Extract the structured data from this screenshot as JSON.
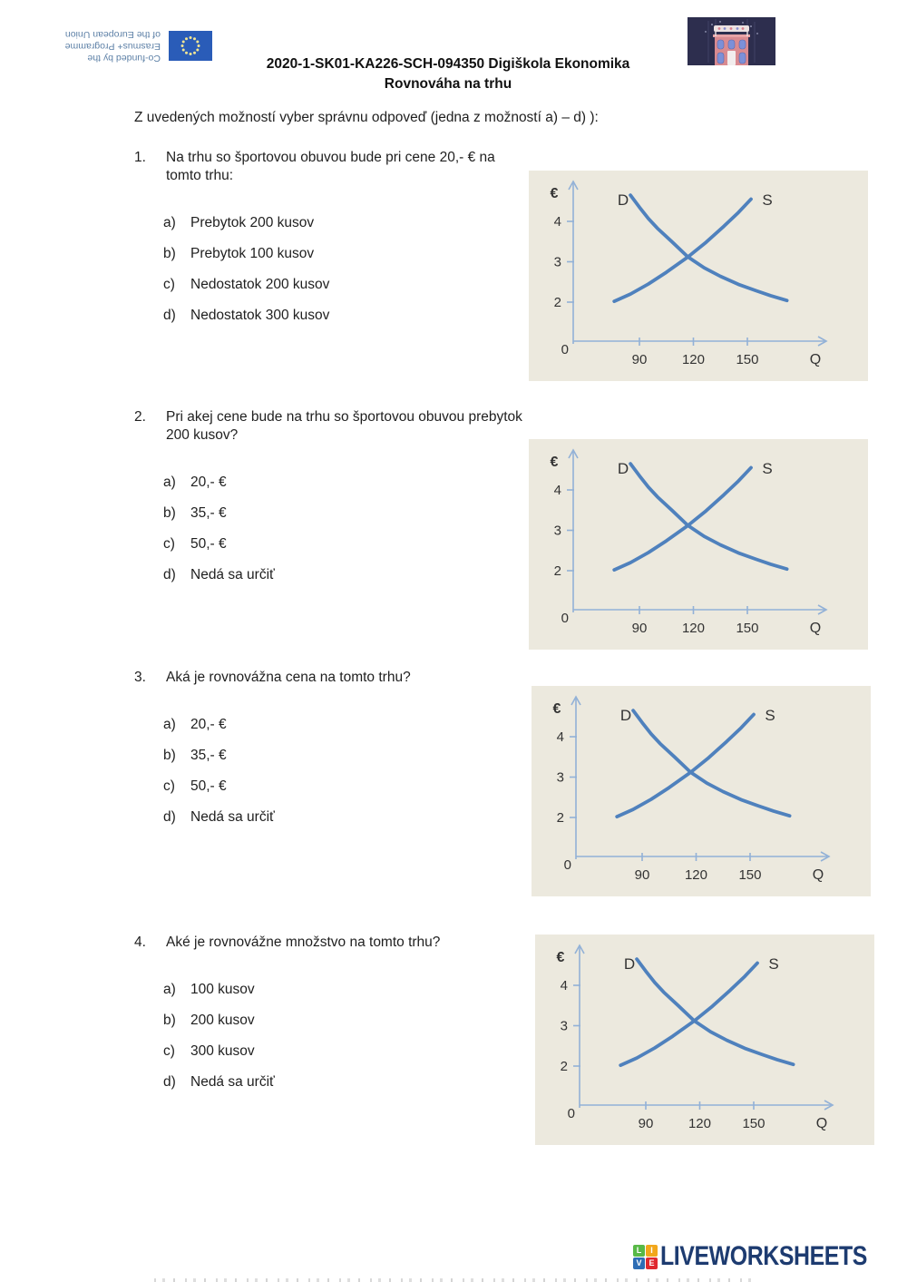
{
  "header": {
    "eu_logo": {
      "lines": [
        "Co-funded by the",
        "Erasmus+ Programme",
        "of the European Union"
      ]
    },
    "title_line1": "2020-1-SK01-KA226-SCH-094350 Digiškola Ekonomika",
    "title_line2": "Rovnováha na trhu"
  },
  "instruction": "Z uvedených možností vyber správnu odpoveď (jedna z možností a) – d) ):",
  "questions": [
    {
      "number": "1.",
      "text": "Na trhu so športovou obuvou bude pri cene 20,- € na tomto trhu:",
      "options": [
        {
          "letter": "a)",
          "text": "Prebytok 200 kusov"
        },
        {
          "letter": "b)",
          "text": "Prebytok 100 kusov"
        },
        {
          "letter": "c)",
          "text": "Nedostatok 200 kusov"
        },
        {
          "letter": "d)",
          "text": "Nedostatok 300 kusov"
        }
      ]
    },
    {
      "number": "2.",
      "text": "Pri akej cene bude na trhu so športovou obuvou prebytok 200 kusov?",
      "options": [
        {
          "letter": "a)",
          "text": "20,- €"
        },
        {
          "letter": "b)",
          "text": "35,- €"
        },
        {
          "letter": "c)",
          "text": "50,- €"
        },
        {
          "letter": "d)",
          "text": "Nedá sa určiť"
        }
      ]
    },
    {
      "number": "3.",
      "text": "Aká je rovnovážna cena na tomto trhu?",
      "options": [
        {
          "letter": "a)",
          "text": "20,- €"
        },
        {
          "letter": "b)",
          "text": "35,- €"
        },
        {
          "letter": "c)",
          "text": "50,- €"
        },
        {
          "letter": "d)",
          "text": "Nedá sa určiť"
        }
      ]
    },
    {
      "number": "4.",
      "text": "Aké je rovnovážne množstvo na tomto trhu?",
      "options": [
        {
          "letter": "a)",
          "text": "100 kusov"
        },
        {
          "letter": "b)",
          "text": "200 kusov"
        },
        {
          "letter": "c)",
          "text": "300 kusov"
        },
        {
          "letter": "d)",
          "text": "Nedá sa určiť"
        }
      ]
    }
  ],
  "chart_data": {
    "type": "line",
    "title": "",
    "xlabel": "Q",
    "ylabel": "€",
    "x_ticks": [
      90,
      120,
      150
    ],
    "y_ticks": [
      2,
      3,
      4
    ],
    "origin_label": "0",
    "grid": false,
    "legend_position": "labels at curve tops",
    "note": "same supply-demand chart repeated beside all four questions",
    "series": [
      {
        "name": "D",
        "points": [
          [
            85,
            4.65
          ],
          [
            90,
            4.35
          ],
          [
            95,
            4.07
          ],
          [
            100,
            3.83
          ],
          [
            108,
            3.5
          ],
          [
            117,
            3.12
          ],
          [
            126,
            2.85
          ],
          [
            135,
            2.64
          ],
          [
            145,
            2.44
          ],
          [
            155,
            2.28
          ],
          [
            163,
            2.16
          ],
          [
            172,
            2.04
          ]
        ]
      },
      {
        "name": "S",
        "points": [
          [
            76,
            2.02
          ],
          [
            85,
            2.2
          ],
          [
            95,
            2.45
          ],
          [
            105,
            2.74
          ],
          [
            117,
            3.12
          ],
          [
            127,
            3.48
          ],
          [
            137,
            3.88
          ],
          [
            145,
            4.22
          ],
          [
            152,
            4.55
          ]
        ]
      }
    ],
    "equilibrium": {
      "quantity": 117,
      "price": 3.1
    },
    "colors": {
      "curve": "#4f81bd",
      "axis": "#92b1d7",
      "text": "#333333",
      "panel": "#ece9de"
    }
  },
  "footer": {
    "logo_squares": [
      {
        "letter": "L",
        "color": "#58b947"
      },
      {
        "letter": "I",
        "color": "#f2a71b"
      },
      {
        "letter": "V",
        "color": "#2d6db5"
      },
      {
        "letter": "E",
        "color": "#e0282e"
      }
    ],
    "brand": "LIVEWORKSHEETS",
    "brand_color": "#1d3b70"
  }
}
